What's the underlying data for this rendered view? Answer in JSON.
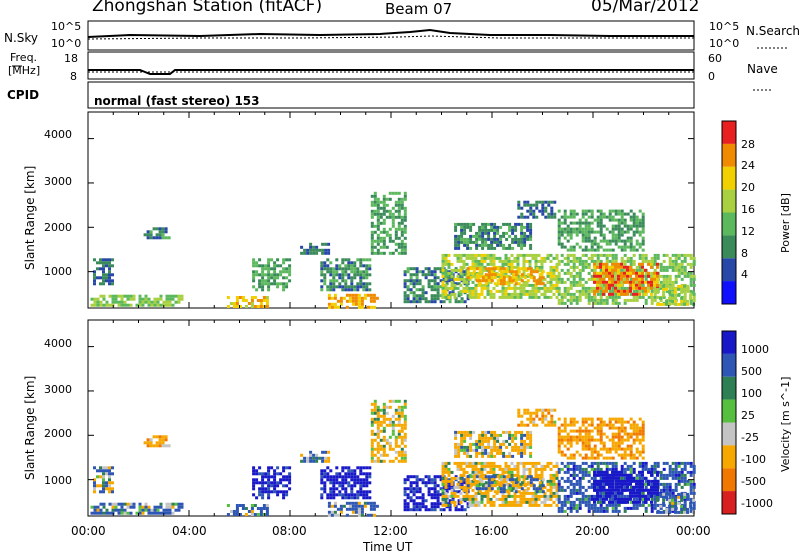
{
  "header": {
    "title": "Zhongshan Station (fitACF)",
    "beam": "Beam 07",
    "date": "05/Mar/2012"
  },
  "noise_panel": {
    "left_label": "N.Sky",
    "right_label": "N.Search",
    "tick_top": "10^5",
    "tick_bottom": "10^0"
  },
  "freq_panel": {
    "left_label_1": "Freq.",
    "left_label_2": "[MHz]",
    "right_label": "Nave",
    "left_ticks": [
      "18",
      "8"
    ],
    "right_ticks": [
      "60",
      "0"
    ]
  },
  "cpid": {
    "label": "CPID",
    "value": "normal (fast stereo) 153"
  },
  "colors": {
    "power_scale": [
      "#1010ff",
      "#2848a8",
      "#3a8a5a",
      "#5cb85c",
      "#a8d040",
      "#f0d000",
      "#f08a00",
      "#e82020"
    ],
    "velocity_scale": [
      "#1818c8",
      "#2e56b4",
      "#2f7f55",
      "#57bf3f",
      "#c4c4c4",
      "#f6a800",
      "#f07800",
      "#d82020"
    ]
  },
  "chart_data": [
    {
      "type": "heatmap",
      "title": "",
      "xlabel": "Time UT",
      "ylabel": "Slant Range [km]",
      "x_tick_labels": [
        "00:00",
        "04:00",
        "08:00",
        "12:00",
        "16:00",
        "20:00",
        "00:00"
      ],
      "y_tick_labels": [
        "1000",
        "2000",
        "3000",
        "4000"
      ],
      "xlim_hours": [
        0,
        24
      ],
      "ylim_km": [
        180,
        4600
      ],
      "colorbar": {
        "label": "Power [dB]",
        "ticks": [
          "4",
          "8",
          "12",
          "16",
          "20",
          "24",
          "28"
        ],
        "range": [
          0,
          32
        ]
      },
      "regions": [
        {
          "t0": 0.1,
          "t1": 3.9,
          "r0": 250,
          "r1": 480,
          "value": 16
        },
        {
          "t0": 0.2,
          "t1": 1.0,
          "r0": 700,
          "r1": 1300,
          "value": 8
        },
        {
          "t0": 2.2,
          "t1": 3.2,
          "r0": 1750,
          "r1": 2000,
          "value": 10
        },
        {
          "t0": 5.5,
          "t1": 7.2,
          "r0": 200,
          "r1": 450,
          "value": 22
        },
        {
          "t0": 6.5,
          "t1": 8.0,
          "r0": 600,
          "r1": 1300,
          "value": 12
        },
        {
          "t0": 8.4,
          "t1": 9.5,
          "r0": 1400,
          "r1": 1650,
          "value": 8
        },
        {
          "t0": 9.5,
          "t1": 11.5,
          "r0": 200,
          "r1": 500,
          "value": 24
        },
        {
          "t0": 9.2,
          "t1": 11.2,
          "r0": 600,
          "r1": 1300,
          "value": 10
        },
        {
          "t0": 11.2,
          "t1": 12.6,
          "r0": 1400,
          "r1": 2800,
          "value": 12
        },
        {
          "t0": 12.5,
          "t1": 15.0,
          "r0": 300,
          "r1": 1100,
          "value": 9
        },
        {
          "t0": 14.0,
          "t1": 18.6,
          "r0": 400,
          "r1": 1400,
          "value": 18
        },
        {
          "t0": 15.0,
          "t1": 18.0,
          "r0": 700,
          "r1": 1100,
          "value": 24
        },
        {
          "t0": 14.5,
          "t1": 17.5,
          "r0": 1500,
          "r1": 2100,
          "value": 10
        },
        {
          "t0": 17.0,
          "t1": 18.5,
          "r0": 2200,
          "r1": 2600,
          "value": 8
        },
        {
          "t0": 18.6,
          "t1": 24.0,
          "r0": 300,
          "r1": 1400,
          "value": 16
        },
        {
          "t0": 20.0,
          "t1": 22.5,
          "r0": 500,
          "r1": 1200,
          "value": 26
        },
        {
          "t0": 18.6,
          "t1": 22.0,
          "r0": 1500,
          "r1": 2400,
          "value": 12
        },
        {
          "t0": 22.5,
          "t1": 24.0,
          "r0": 250,
          "r1": 700,
          "value": 18
        }
      ]
    },
    {
      "type": "heatmap",
      "title": "",
      "xlabel": "Time UT",
      "ylabel": "Slant Range [km]",
      "x_tick_labels": [
        "00:00",
        "04:00",
        "08:00",
        "12:00",
        "16:00",
        "20:00",
        "00:00"
      ],
      "y_tick_labels": [
        "1000",
        "2000",
        "3000",
        "4000"
      ],
      "xlim_hours": [
        0,
        24
      ],
      "ylim_km": [
        180,
        4600
      ],
      "colorbar": {
        "label": "Velocity [m s^-1]",
        "ticks": [
          "1000",
          "500",
          "100",
          "25",
          "-25",
          "-100",
          "-500",
          "-1000"
        ]
      },
      "regions": [
        {
          "t0": 0.1,
          "t1": 3.9,
          "r0": 250,
          "r1": 480,
          "value": 150
        },
        {
          "t0": 0.2,
          "t1": 1.0,
          "r0": 700,
          "r1": 1300,
          "value": 0
        },
        {
          "t0": 2.2,
          "t1": 3.2,
          "r0": 1750,
          "r1": 2000,
          "value": -300
        },
        {
          "t0": 5.5,
          "t1": 7.2,
          "r0": 200,
          "r1": 450,
          "value": 120
        },
        {
          "t0": 6.5,
          "t1": 8.0,
          "r0": 600,
          "r1": 1300,
          "value": 600
        },
        {
          "t0": 8.4,
          "t1": 9.5,
          "r0": 1400,
          "r1": 1650,
          "value": 0
        },
        {
          "t0": 9.5,
          "t1": 11.5,
          "r0": 200,
          "r1": 500,
          "value": 150
        },
        {
          "t0": 9.2,
          "t1": 11.2,
          "r0": 600,
          "r1": 1300,
          "value": 700
        },
        {
          "t0": 11.2,
          "t1": 12.6,
          "r0": 1400,
          "r1": 2800,
          "value": -200
        },
        {
          "t0": 12.5,
          "t1": 15.0,
          "r0": 300,
          "r1": 1100,
          "value": 600
        },
        {
          "t0": 14.0,
          "t1": 18.6,
          "r0": 400,
          "r1": 1400,
          "value": -200
        },
        {
          "t0": 15.0,
          "t1": 18.0,
          "r0": 700,
          "r1": 1100,
          "value": 0
        },
        {
          "t0": 14.5,
          "t1": 17.5,
          "r0": 1500,
          "r1": 2100,
          "value": -150
        },
        {
          "t0": 17.0,
          "t1": 18.5,
          "r0": 2200,
          "r1": 2600,
          "value": -300
        },
        {
          "t0": 18.6,
          "t1": 24.0,
          "r0": 300,
          "r1": 1400,
          "value": 300
        },
        {
          "t0": 20.0,
          "t1": 22.5,
          "r0": 500,
          "r1": 1200,
          "value": 800
        },
        {
          "t0": 18.6,
          "t1": 22.0,
          "r0": 1500,
          "r1": 2400,
          "value": -400
        },
        {
          "t0": 22.5,
          "t1": 24.0,
          "r0": 250,
          "r1": 700,
          "value": 150
        }
      ]
    }
  ]
}
